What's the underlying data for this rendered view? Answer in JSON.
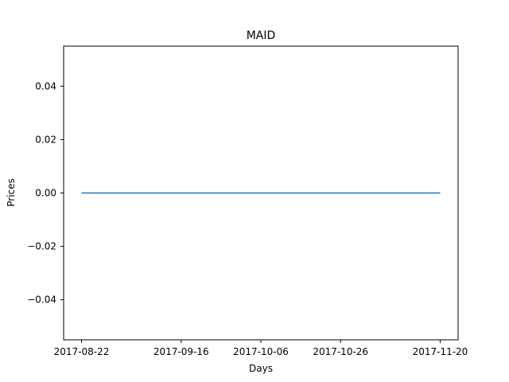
{
  "chart_data": {
    "type": "line",
    "title": "MAID",
    "xlabel": "Days",
    "ylabel": "Prices",
    "x_tick_labels": [
      "2017-08-22",
      "2017-09-16",
      "2017-10-06",
      "2017-10-26",
      "2017-11-20"
    ],
    "y_tick_labels": [
      "0.04",
      "0.02",
      "0.00",
      "−0.02",
      "−0.04"
    ],
    "y_ticks": [
      0.04,
      0.02,
      0.0,
      -0.02,
      -0.04
    ],
    "xlim": [
      "2017-08-22",
      "2017-11-20"
    ],
    "ylim": [
      -0.055,
      0.055
    ],
    "grid": false,
    "series": [
      {
        "color": "#1f77b4",
        "x": [
          "2017-08-22",
          "2017-11-20"
        ],
        "y": [
          0.0,
          0.0
        ]
      }
    ]
  }
}
